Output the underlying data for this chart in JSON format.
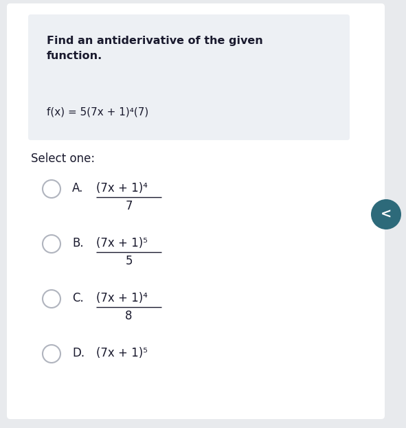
{
  "title_bold": "Find an antiderivative of the given\nfunction.",
  "question": "f(x) = 5(7x + 1)⁴(7)",
  "select_label": "Select one:",
  "options": [
    {
      "letter": "A.",
      "numerator": "(7x + 1)⁴",
      "denominator": "7",
      "has_fraction": true
    },
    {
      "letter": "B.",
      "numerator": "(7x + 1)⁵",
      "denominator": "5",
      "has_fraction": true
    },
    {
      "letter": "C.",
      "numerator": "(7x + 1)⁴",
      "denominator": "8",
      "has_fraction": true
    },
    {
      "letter": "D.",
      "numerator": "(7x + 1)⁵",
      "denominator": null,
      "has_fraction": false
    }
  ],
  "bg_color": "#e8eaed",
  "card_color": "#edf0f4",
  "white": "#ffffff",
  "circle_edge_color": "#b0b4be",
  "text_color": "#1a1a2e",
  "teal_color": "#2d6a7a",
  "figsize": [
    5.91,
    6.23
  ],
  "dpi": 100
}
